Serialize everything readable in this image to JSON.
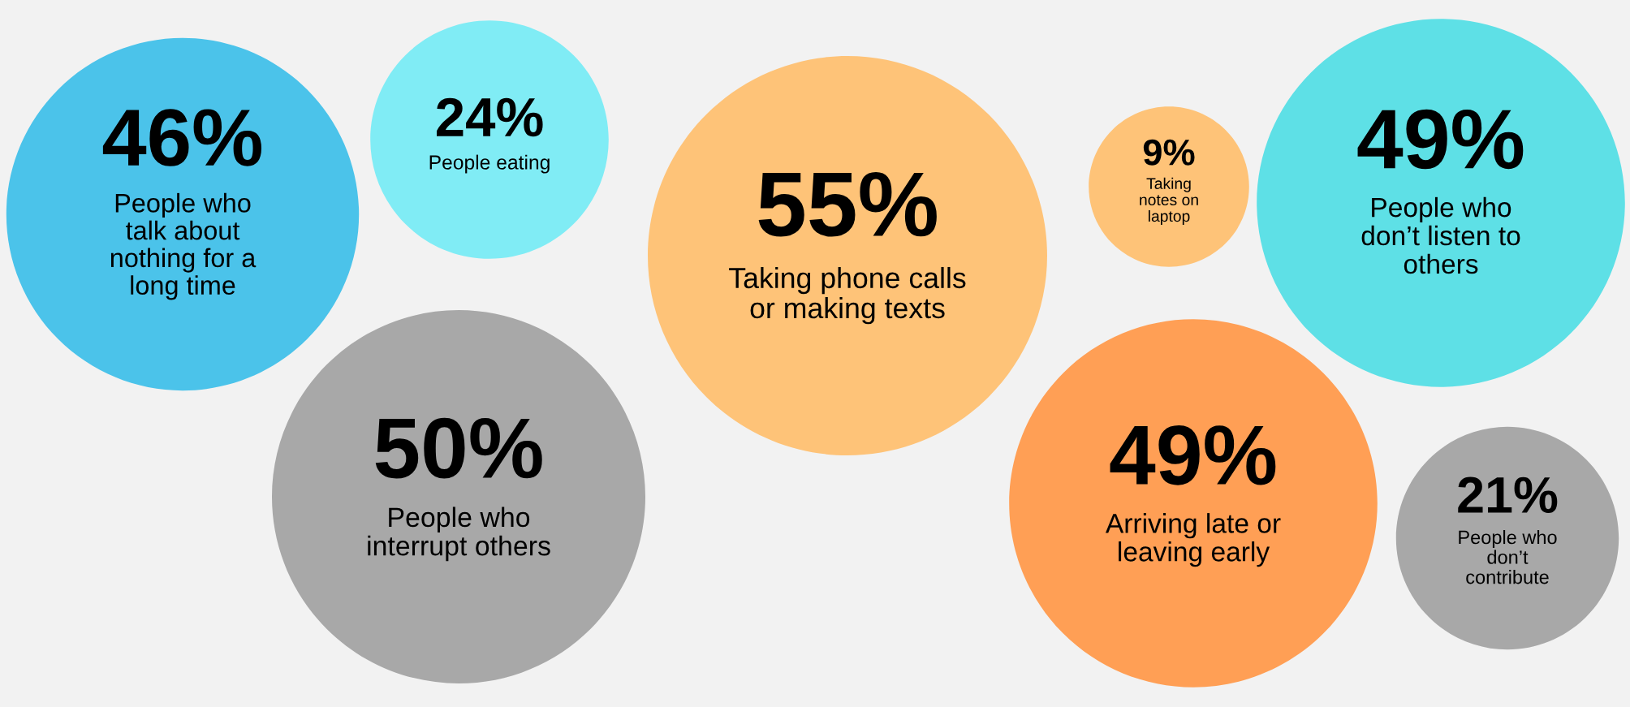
{
  "chart_data": {
    "type": "other",
    "categories": [
      "People who\ntalk about\nnothing for a\nlong time",
      "People eating",
      "Taking phone calls\nor making texts",
      "Taking\nnotes on\nlaptop",
      "People who\ndon’t listen to\nothers",
      "People who\ninterrupt others",
      "Arriving late or\nleaving early",
      "People who\ndon’t\ncontribute"
    ],
    "values": [
      46,
      24,
      55,
      9,
      49,
      50,
      49,
      21
    ],
    "value_labels": [
      "46%",
      "24%",
      "55%",
      "9%",
      "49%",
      "50%",
      "49%",
      "21%"
    ],
    "colors": [
      "#4bc3ea",
      "#80ecf5",
      "#fec378",
      "#fec378",
      "#5ee0e6",
      "#a8a8a8",
      "#ff9f55",
      "#a8a8a8"
    ]
  }
}
